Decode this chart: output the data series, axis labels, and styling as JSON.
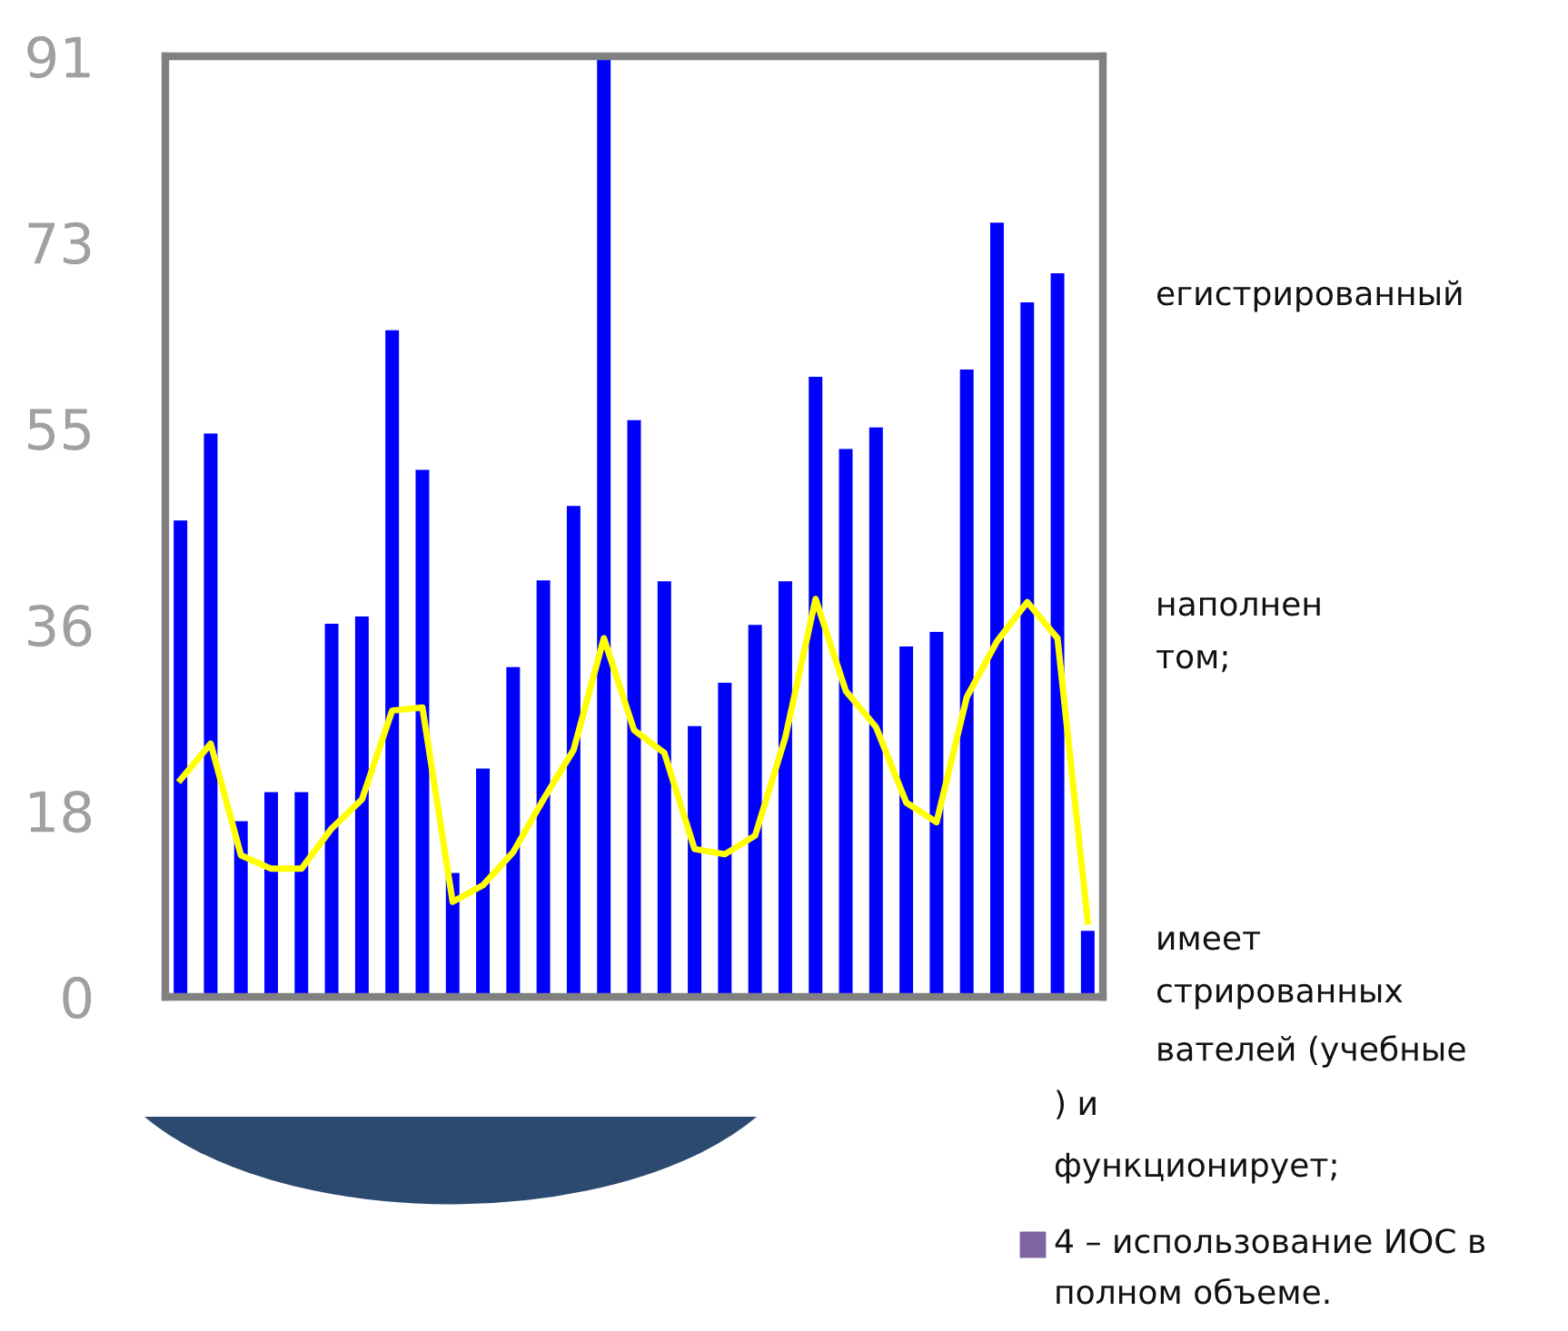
{
  "chart_data": {
    "type": "bar",
    "categories": [
      null,
      null,
      null,
      null,
      null,
      null,
      null,
      null,
      null,
      null,
      null,
      null,
      null,
      null,
      null,
      null,
      null,
      null,
      null,
      null,
      null,
      null,
      null,
      null,
      null,
      null,
      null,
      null,
      null,
      null,
      null
    ],
    "series": [
      {
        "color": "#0000ff",
        "values": [
          46.1,
          54.5,
          17.0,
          19.8,
          19.8,
          36.1,
          36.8,
          64.5,
          51.0,
          12.0,
          22.1,
          31.9,
          40.3,
          47.5,
          91,
          55.8,
          40.2,
          26.2,
          30.4,
          36.0,
          40.2,
          60.0,
          53.0,
          55.1,
          33.9,
          35.3,
          60.7,
          74.9,
          67.2,
          70.0,
          6.4
        ]
      },
      {
        "type": "line",
        "color": "#ffff00",
        "values": [
          21.0,
          24.5,
          13.7,
          12.4,
          12.4,
          16.3,
          19.1,
          27.7,
          28.0,
          9.2,
          10.8,
          14.0,
          19.1,
          23.9,
          34.7,
          25.8,
          23.6,
          14.3,
          13.8,
          15.6,
          25.1,
          38.5,
          29.6,
          26.1,
          18.8,
          16.9,
          29.0,
          34.4,
          38.2,
          34.7,
          7.3
        ]
      }
    ],
    "ylim": [
      0,
      91
    ],
    "yticks": [
      0,
      18,
      36,
      55,
      73,
      91
    ],
    "tick_labels": "y",
    "grid": false,
    "annotations": [
      "егистрированный",
      "наполнен",
      "том;",
      "имеет",
      "стрированных",
      "вателей (учебные",
      ") и",
      "функционирует;",
      "4 – использование ИОС в",
      "полном объеме."
    ]
  }
}
